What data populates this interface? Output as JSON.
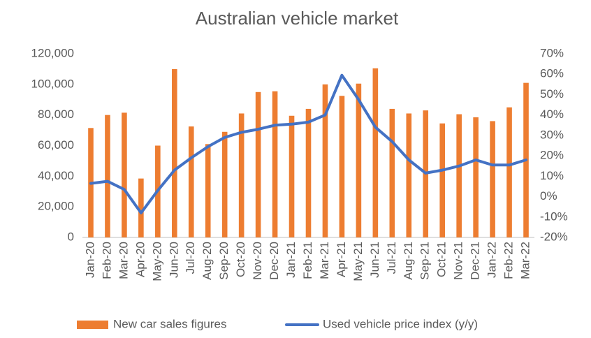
{
  "chart_data": {
    "type": "bar-line",
    "title": "Australian vehicle market",
    "categories": [
      "Jan-20",
      "Feb-20",
      "Mar-20",
      "Apr-20",
      "May-20",
      "Jun-20",
      "Jul-20",
      "Aug-20",
      "Sep-20",
      "Oct-20",
      "Nov-20",
      "Dec-20",
      "Jan-21",
      "Feb-21",
      "Mar-21",
      "Apr-21",
      "May-21",
      "Jun-21",
      "Jul-21",
      "Aug-21",
      "Sep-21",
      "Oct-21",
      "Nov-21",
      "Dec-21",
      "Jan-22",
      "Feb-22",
      "Mar-22"
    ],
    "series": [
      {
        "name": "New car sales figures",
        "type": "bar",
        "color": "#ed7d31",
        "axis": "y",
        "values": [
          71500,
          80000,
          81500,
          38500,
          60000,
          110000,
          72500,
          61000,
          69000,
          81000,
          95000,
          95500,
          79500,
          84000,
          100000,
          92500,
          100500,
          110500,
          84000,
          81000,
          83000,
          74500,
          80500,
          78500,
          76000,
          85000,
          101000
        ]
      },
      {
        "name": "Used vehicle price index (y/y)",
        "type": "line",
        "color": "#4472c4",
        "axis": "y2",
        "values": [
          6.5,
          7.5,
          3.5,
          -8,
          3,
          13,
          19,
          24.5,
          29,
          31.5,
          33,
          35,
          35.5,
          36.5,
          40,
          59.5,
          47.5,
          34,
          27,
          18,
          11.5,
          13,
          15,
          18,
          15.5,
          15.5,
          18
        ]
      }
    ],
    "ylim": [
      0,
      120000
    ],
    "yticks": [
      0,
      {
        "value": 20000,
        "label": "20,000"
      },
      {
        "value": 40000,
        "label": "40,000"
      },
      {
        "value": 60000,
        "label": "60,000"
      },
      {
        "value": 80000,
        "label": "80,000"
      },
      {
        "value": 100000,
        "label": "100,000"
      },
      {
        "value": 120000,
        "label": "120,000"
      }
    ],
    "y2lim": [
      -20,
      70
    ],
    "y2ticks": [
      {
        "value": -20,
        "label": "-20%"
      },
      {
        "value": -10,
        "label": "-10%"
      },
      {
        "value": 0,
        "label": "0%"
      },
      {
        "value": 10,
        "label": "10%"
      },
      {
        "value": 20,
        "label": "20%"
      },
      {
        "value": 30,
        "label": "30%"
      },
      {
        "value": 40,
        "label": "40%"
      },
      {
        "value": 50,
        "label": "50%"
      },
      {
        "value": 60,
        "label": "60%"
      },
      {
        "value": 70,
        "label": "70%"
      }
    ],
    "grid": false,
    "legend": "bottom"
  }
}
